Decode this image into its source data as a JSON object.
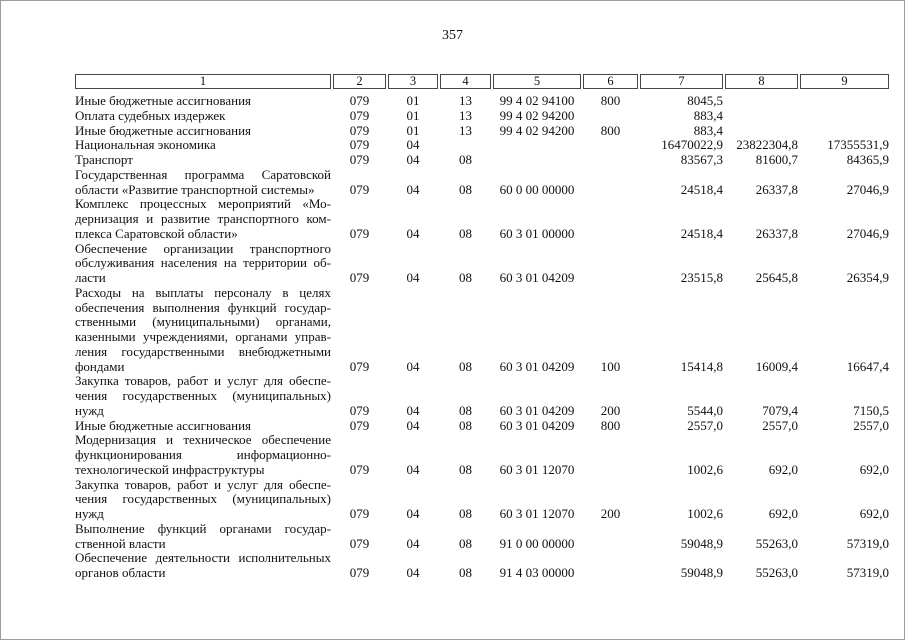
{
  "page": {
    "number": "357"
  },
  "table": {
    "headers": [
      "1",
      "2",
      "3",
      "4",
      "5",
      "6",
      "7",
      "8",
      "9"
    ],
    "rows": [
      {
        "lines": [
          "Иные бюджетные ассигнования"
        ],
        "values": [
          "079",
          "01",
          "13",
          "99 4 02 94100",
          "800",
          "8045,5",
          "",
          ""
        ]
      },
      {
        "lines": [
          "Оплата судебных издержек"
        ],
        "values": [
          "079",
          "01",
          "13",
          "99 4 02 94200",
          "",
          "883,4",
          "",
          ""
        ]
      },
      {
        "lines": [
          "Иные бюджетные ассигнования"
        ],
        "values": [
          "079",
          "01",
          "13",
          "99 4 02 94200",
          "800",
          "883,4",
          "",
          ""
        ]
      },
      {
        "lines": [
          "Национальная экономика"
        ],
        "values": [
          "079",
          "04",
          "",
          "",
          "",
          "16470022,9",
          "23822304,8",
          "17355531,9"
        ]
      },
      {
        "lines": [
          "Транспорт"
        ],
        "values": [
          "079",
          "04",
          "08",
          "",
          "",
          "83567,3",
          "81600,7",
          "84365,9"
        ]
      },
      {
        "lines": [
          "Государственная программа Саратовской",
          "области «Развитие транспортной системы»"
        ],
        "values": [
          "079",
          "04",
          "08",
          "60 0 00 00000",
          "",
          "24518,4",
          "26337,8",
          "27046,9"
        ]
      },
      {
        "lines": [
          "Комплекс процессных мероприятий «Мо-",
          "дернизация и развитие транспортного ком-",
          "плекса Саратовской области»"
        ],
        "values": [
          "079",
          "04",
          "08",
          "60 3 01 00000",
          "",
          "24518,4",
          "26337,8",
          "27046,9"
        ]
      },
      {
        "lines": [
          "Обеспечение организации транспортного",
          "обслуживания населения на территории об-",
          "ласти"
        ],
        "values": [
          "079",
          "04",
          "08",
          "60 3 01 04209",
          "",
          "23515,8",
          "25645,8",
          "26354,9"
        ]
      },
      {
        "lines": [
          "Расходы на выплаты персоналу в целях",
          "обеспечения выполнения функций государ-",
          "ственными (муниципальными) органами,",
          "казенными учреждениями, органами управ-",
          "ления государственными внебюджетными",
          "фондами"
        ],
        "values": [
          "079",
          "04",
          "08",
          "60 3 01 04209",
          "100",
          "15414,8",
          "16009,4",
          "16647,4"
        ]
      },
      {
        "lines": [
          "Закупка товаров, работ и услуг для обеспе-",
          "чения государственных (муниципальных)",
          "нужд"
        ],
        "values": [
          "079",
          "04",
          "08",
          "60 3 01 04209",
          "200",
          "5544,0",
          "7079,4",
          "7150,5"
        ]
      },
      {
        "lines": [
          "Иные бюджетные ассигнования"
        ],
        "values": [
          "079",
          "04",
          "08",
          "60 3 01 04209",
          "800",
          "2557,0",
          "2557,0",
          "2557,0"
        ]
      },
      {
        "lines": [
          "Модернизация и техническое обеспечение",
          "функционирования информационно-",
          "технологической инфраструктуры"
        ],
        "values": [
          "079",
          "04",
          "08",
          "60 3 01 12070",
          "",
          "1002,6",
          "692,0",
          "692,0"
        ]
      },
      {
        "lines": [
          "Закупка товаров, работ и услуг для обеспе-",
          "чения государственных (муниципальных)",
          "нужд"
        ],
        "values": [
          "079",
          "04",
          "08",
          "60 3 01 12070",
          "200",
          "1002,6",
          "692,0",
          "692,0"
        ]
      },
      {
        "lines": [
          "Выполнение функций органами государ-",
          "ственной власти"
        ],
        "values": [
          "079",
          "04",
          "08",
          "91 0 00 00000",
          "",
          "59048,9",
          "55263,0",
          "57319,0"
        ]
      },
      {
        "lines": [
          "Обеспечение деятельности исполнительных",
          "органов области"
        ],
        "values": [
          "079",
          "04",
          "08",
          "91 4 03 00000",
          "",
          "59048,9",
          "55263,0",
          "57319,0"
        ]
      }
    ]
  }
}
